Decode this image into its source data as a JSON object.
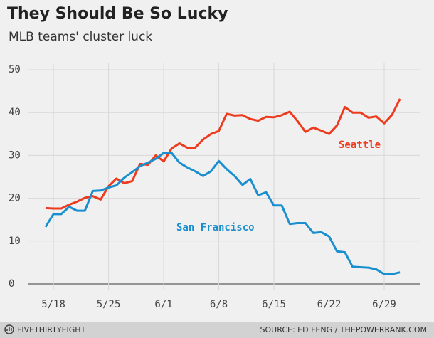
{
  "chart_data": {
    "type": "line",
    "title": "They Should Be So Lucky",
    "subtitle": "MLB teams' cluster luck",
    "x": [
      "5/17",
      "5/18",
      "5/19",
      "5/20",
      "5/21",
      "5/22",
      "5/23",
      "5/24",
      "5/25",
      "5/26",
      "5/27",
      "5/28",
      "5/29",
      "5/30",
      "5/31",
      "6/1",
      "6/2",
      "6/3",
      "6/4",
      "6/5",
      "6/6",
      "6/7",
      "6/8",
      "6/9",
      "6/10",
      "6/11",
      "6/12",
      "6/13",
      "6/14",
      "6/15",
      "6/16",
      "6/17",
      "6/18",
      "6/19",
      "6/20",
      "6/21",
      "6/22",
      "6/23",
      "6/24",
      "6/25",
      "6/26",
      "6/27",
      "6/28",
      "6/29",
      "6/30",
      "7/1"
    ],
    "series": [
      {
        "name": "Seattle",
        "color": "#ed3b1f",
        "values": [
          17.7,
          17.6,
          17.6,
          18.5,
          19.2,
          20.1,
          20.5,
          19.7,
          22.8,
          24.6,
          23.5,
          24.0,
          28.0,
          27.8,
          30.0,
          28.6,
          31.6,
          32.8,
          31.8,
          31.8,
          33.7,
          35.0,
          35.7,
          39.7,
          39.3,
          39.4,
          38.5,
          38.1,
          39.0,
          38.9,
          39.4,
          40.2,
          38.0,
          35.5,
          36.5,
          35.8,
          35.0,
          37.0,
          41.3,
          40.0,
          40.0,
          38.8,
          39.1,
          37.5,
          39.5,
          43.2
        ]
      },
      {
        "name": "San Francisco",
        "color": "#1a8fcf",
        "values": [
          13.3,
          16.3,
          16.3,
          18.0,
          17.1,
          17.1,
          21.7,
          21.8,
          22.5,
          23.0,
          24.8,
          26.1,
          27.5,
          28.3,
          29.2,
          30.6,
          30.6,
          28.3,
          27.2,
          26.3,
          25.2,
          26.3,
          28.7,
          26.8,
          25.2,
          23.1,
          24.5,
          20.7,
          21.4,
          18.3,
          18.3,
          14.0,
          14.2,
          14.2,
          11.9,
          12.1,
          11.1,
          7.6,
          7.4,
          4.0,
          3.9,
          3.8,
          3.4,
          2.3,
          2.3,
          2.7
        ]
      }
    ],
    "xticks": [
      "5/18",
      "5/25",
      "6/1",
      "6/8",
      "6/15",
      "6/22",
      "6/29"
    ],
    "ylim": [
      0,
      50
    ],
    "yticks": [
      0,
      10,
      20,
      30,
      40,
      50
    ],
    "grid": true
  },
  "footer": {
    "brand": "FIVETHIRTYEIGHT",
    "source": "SOURCE: ED FENG / THEPOWERRANK.COM"
  }
}
